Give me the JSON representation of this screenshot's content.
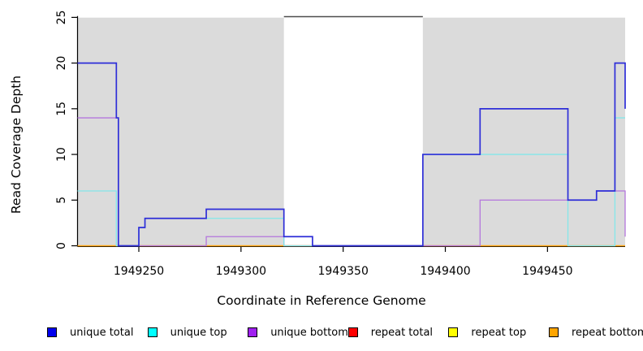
{
  "chart_data": {
    "type": "line",
    "subtype": "step",
    "title": "",
    "xlabel": "Coordinate in Reference Genome",
    "ylabel": "Read Coverage Depth",
    "xlim": [
      1949220,
      1949488
    ],
    "ylim": [
      0,
      25
    ],
    "x_ticks": [
      1949250,
      1949300,
      1949350,
      1949400,
      1949450
    ],
    "y_ticks": [
      0,
      5,
      10,
      15,
      20,
      25
    ],
    "grid": false,
    "legend_position": "bottom",
    "background_color": "#ffffff",
    "shade_color": "#dbdbdb",
    "axis_color": "#000000",
    "box_color": "#4d4d4d",
    "shaded_regions": [
      {
        "x0": 1949220,
        "x1": 1949321
      },
      {
        "x0": 1949389,
        "x1": 1949488
      }
    ],
    "series": [
      {
        "name": "repeat total",
        "line_color": "#e02020",
        "line_width": 1.0,
        "steps": [
          [
            1949220,
            0
          ]
        ]
      },
      {
        "name": "repeat top",
        "line_color": "#f0f000",
        "line_width": 1.0,
        "steps": [
          [
            1949220,
            0
          ]
        ]
      },
      {
        "name": "repeat bottom",
        "line_color": "#ffa513",
        "line_width": 1.6,
        "steps": [
          [
            1949220,
            0
          ]
        ]
      },
      {
        "name": "unique bottom",
        "line_color": "#b476dc",
        "line_width": 1.3,
        "steps": [
          [
            1949220,
            14
          ],
          [
            1949240,
            0
          ],
          [
            1949283,
            1
          ],
          [
            1949321,
            0
          ],
          [
            1949417,
            5
          ],
          [
            1949474,
            6
          ],
          [
            1949488,
            1
          ]
        ]
      },
      {
        "name": "unique top",
        "line_color": "#84e7ea",
        "line_width": 1.3,
        "steps": [
          [
            1949220,
            6
          ],
          [
            1949239,
            0
          ],
          [
            1949250,
            2
          ],
          [
            1949253,
            3
          ],
          [
            1949321,
            0
          ],
          [
            1949389,
            10
          ],
          [
            1949460,
            0
          ],
          [
            1949483,
            14
          ]
        ]
      },
      {
        "name": "unique total",
        "line_color": "#2e2ed8",
        "line_width": 1.7,
        "steps": [
          [
            1949220,
            20
          ],
          [
            1949239,
            14
          ],
          [
            1949240,
            0
          ],
          [
            1949250,
            2
          ],
          [
            1949253,
            3
          ],
          [
            1949283,
            4
          ],
          [
            1949321,
            1
          ],
          [
            1949335,
            0
          ],
          [
            1949389,
            10
          ],
          [
            1949417,
            15
          ],
          [
            1949460,
            5
          ],
          [
            1949474,
            6
          ],
          [
            1949483,
            20
          ],
          [
            1949488,
            15
          ]
        ]
      }
    ],
    "legend": [
      {
        "label": "unique total",
        "color": "#0000ee"
      },
      {
        "label": "unique top",
        "color": "#00ffff"
      },
      {
        "label": "unique bottom",
        "color": "#a020f0"
      },
      {
        "label": "repeat total",
        "color": "#ff0000"
      },
      {
        "label": "repeat top",
        "color": "#ffff00"
      },
      {
        "label": "repeat bottom",
        "color": "#ffa500"
      }
    ]
  }
}
